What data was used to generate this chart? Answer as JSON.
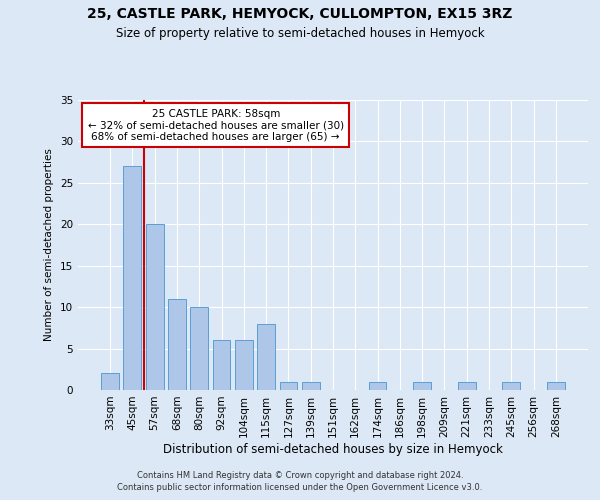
{
  "title": "25, CASTLE PARK, HEMYOCK, CULLOMPTON, EX15 3RZ",
  "subtitle": "Size of property relative to semi-detached houses in Hemyock",
  "xlabel": "Distribution of semi-detached houses by size in Hemyock",
  "ylabel": "Number of semi-detached properties",
  "categories": [
    "33sqm",
    "45sqm",
    "57sqm",
    "68sqm",
    "80sqm",
    "92sqm",
    "104sqm",
    "115sqm",
    "127sqm",
    "139sqm",
    "151sqm",
    "162sqm",
    "174sqm",
    "186sqm",
    "198sqm",
    "209sqm",
    "221sqm",
    "233sqm",
    "245sqm",
    "256sqm",
    "268sqm"
  ],
  "values": [
    2,
    27,
    20,
    11,
    10,
    6,
    6,
    8,
    1,
    1,
    0,
    0,
    1,
    0,
    1,
    0,
    1,
    0,
    1,
    0,
    1
  ],
  "bar_color": "#aec6e8",
  "bar_edge_color": "#5a9fd4",
  "annotation_title": "25 CASTLE PARK: 58sqm",
  "annotation_line1": "← 32% of semi-detached houses are smaller (30)",
  "annotation_line2": "68% of semi-detached houses are larger (65) →",
  "annotation_box_color": "#ffffff",
  "annotation_box_edge": "#cc0000",
  "vline_color": "#cc0000",
  "background_color": "#dce8f5",
  "plot_bg_color": "#dce8f5",
  "ylim": [
    0,
    35
  ],
  "yticks": [
    0,
    5,
    10,
    15,
    20,
    25,
    30,
    35
  ],
  "footer1": "Contains HM Land Registry data © Crown copyright and database right 2024.",
  "footer2": "Contains public sector information licensed under the Open Government Licence v3.0."
}
